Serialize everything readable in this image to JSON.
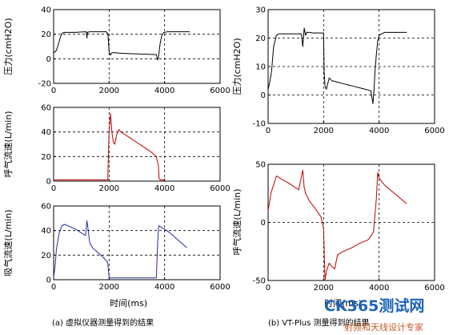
{
  "colors": {
    "pressure": "#000000",
    "expiratory": "#c00000",
    "inspiratory": "#1f2f9a",
    "grid": "#000000"
  },
  "captions": {
    "left": "(a)  虚拟仪器测量得到的结果",
    "right": "(b)  VT-Plus 测量得到的结果"
  },
  "watermark": {
    "line1": "CK365测试网",
    "line2": "射频和天线设计专家"
  },
  "chart_data": [
    {
      "id": "a1",
      "type": "line",
      "ylabel": "压力(cmH2O)",
      "xlabel": "",
      "xlim": [
        0,
        6000
      ],
      "ylim": [
        -20,
        40
      ],
      "xticks": [
        "0",
        "2000",
        "4000",
        "6000"
      ],
      "yticks": [
        "-20",
        "0",
        "20",
        "40"
      ],
      "grid": true,
      "series": [
        {
          "color_key": "pressure",
          "x": [
            0,
            80,
            150,
            250,
            320,
            400,
            600,
            800,
            1000,
            1180,
            1200,
            1220,
            1300,
            1500,
            1700,
            1900,
            1960,
            2000,
            2020,
            2050,
            2100,
            2200,
            2400,
            2600,
            2800,
            3000,
            3200,
            3400,
            3600,
            3700,
            3750,
            3780,
            3800,
            3820,
            3850,
            3900,
            3950,
            4000,
            4100,
            4300,
            4500,
            4700,
            4900
          ],
          "y": [
            5,
            6,
            10,
            18,
            21,
            21.5,
            21.5,
            21.5,
            21.8,
            22,
            17,
            21.5,
            22,
            22,
            22,
            22,
            20,
            6,
            4,
            3,
            5,
            5,
            4.5,
            4.3,
            4.1,
            4,
            3.8,
            3.6,
            3.5,
            3.4,
            -1,
            1,
            5,
            9,
            14,
            19,
            21,
            21.5,
            22,
            22,
            22,
            22,
            22
          ]
        }
      ]
    },
    {
      "id": "a2",
      "type": "line",
      "ylabel": "呼气流速(L/min)",
      "xlabel": "",
      "xlim": [
        0,
        6000
      ],
      "ylim": [
        0,
        60
      ],
      "xticks": [
        "0",
        "2000",
        "4000",
        "6000"
      ],
      "yticks": [
        "0",
        "20",
        "40",
        "60"
      ],
      "grid": true,
      "series": [
        {
          "color_key": "expiratory",
          "x": [
            0,
            500,
            1000,
            1500,
            1950,
            2000,
            2050,
            2100,
            2150,
            2200,
            2280,
            2350,
            2420,
            2500,
            2700,
            2900,
            3100,
            3300,
            3500,
            3700,
            3780,
            3800,
            3850,
            3900,
            4000
          ],
          "y": [
            1,
            1,
            1,
            1,
            1,
            40,
            55,
            40,
            32,
            30,
            38,
            42,
            40,
            39,
            36,
            33,
            30,
            27,
            24,
            20,
            12,
            2,
            1,
            1,
            1
          ]
        }
      ]
    },
    {
      "id": "a3",
      "type": "line",
      "ylabel": "吸气流速(L/min)",
      "xlabel": "时间(ms)",
      "xlim": [
        0,
        6000
      ],
      "ylim": [
        0,
        60
      ],
      "xticks": [
        "0",
        "2000",
        "4000",
        "6000"
      ],
      "yticks": [
        "0",
        "20",
        "40",
        "60"
      ],
      "grid": true,
      "series": [
        {
          "color_key": "inspiratory",
          "x": [
            0,
            50,
            100,
            200,
            300,
            400,
            600,
            800,
            1000,
            1150,
            1200,
            1250,
            1300,
            1400,
            1600,
            1800,
            1950,
            2000,
            2050,
            2100,
            3000,
            3700,
            3750,
            3780,
            3800,
            3850,
            4000,
            4200,
            4400,
            4600,
            4800
          ],
          "y": [
            2,
            10,
            25,
            38,
            44,
            45,
            43,
            41,
            38,
            36,
            48,
            40,
            30,
            26,
            22,
            18,
            14,
            2,
            1.5,
            1.5,
            1.5,
            1.5,
            30,
            42,
            44,
            43,
            41,
            38,
            34,
            30,
            26
          ]
        }
      ]
    },
    {
      "id": "b1",
      "type": "line",
      "ylabel": "压力(cmH2O)",
      "xlabel": "",
      "xlim": [
        0,
        6000
      ],
      "ylim": [
        -10,
        30
      ],
      "xticks": [
        "0",
        "2000",
        "4000",
        "6000"
      ],
      "yticks": [
        "-10",
        "0",
        "10",
        "20",
        "30"
      ],
      "grid": true,
      "series": [
        {
          "color_key": "pressure",
          "x": [
            0,
            50,
            120,
            200,
            300,
            400,
            600,
            800,
            1000,
            1200,
            1250,
            1300,
            1350,
            1400,
            1500,
            1600,
            1800,
            2000,
            2020,
            2050,
            2100,
            2200,
            2300,
            2400,
            2500,
            2700,
            2900,
            3100,
            3300,
            3500,
            3700,
            3780,
            3820,
            3850,
            3900,
            3950,
            4000,
            4100,
            4200,
            4500,
            4800,
            5000
          ],
          "y": [
            2,
            4,
            8,
            17,
            21,
            21.5,
            21.5,
            21.5,
            21.5,
            21.5,
            17,
            23.5,
            21,
            22,
            22,
            21.8,
            21.8,
            21.8,
            8,
            3,
            2,
            6,
            5,
            4.8,
            4.5,
            4,
            3.5,
            3,
            2.5,
            2,
            1.5,
            -3,
            2,
            8,
            14,
            19,
            21,
            21.5,
            22,
            22,
            22,
            22
          ]
        }
      ]
    },
    {
      "id": "b2",
      "type": "line",
      "ylabel": "呼气流速(L/min)",
      "xlabel": "时间(ms)",
      "xlim": [
        0,
        6000
      ],
      "ylim": [
        -50,
        50
      ],
      "xticks": [
        "0",
        "2000",
        "4000",
        "6000"
      ],
      "yticks": [
        "-50",
        "0",
        "50"
      ],
      "grid": true,
      "series": [
        {
          "color_key": "expiratory",
          "x": [
            0,
            100,
            300,
            500,
            800,
            1100,
            1250,
            1300,
            1350,
            1500,
            1700,
            1900,
            2000,
            2050,
            2100,
            2200,
            2300,
            2400,
            2500,
            2700,
            3000,
            3300,
            3600,
            3700,
            3800,
            3900,
            3950,
            4000,
            4200,
            4500,
            4800,
            5000
          ],
          "y": [
            10,
            25,
            40,
            37,
            33,
            28,
            45,
            30,
            25,
            18,
            12,
            5,
            -5,
            -50,
            -42,
            -35,
            -38,
            -40,
            -28,
            -25,
            -22,
            -18,
            -15,
            -12,
            -8,
            20,
            43,
            38,
            32,
            26,
            20,
            16
          ]
        }
      ]
    }
  ]
}
